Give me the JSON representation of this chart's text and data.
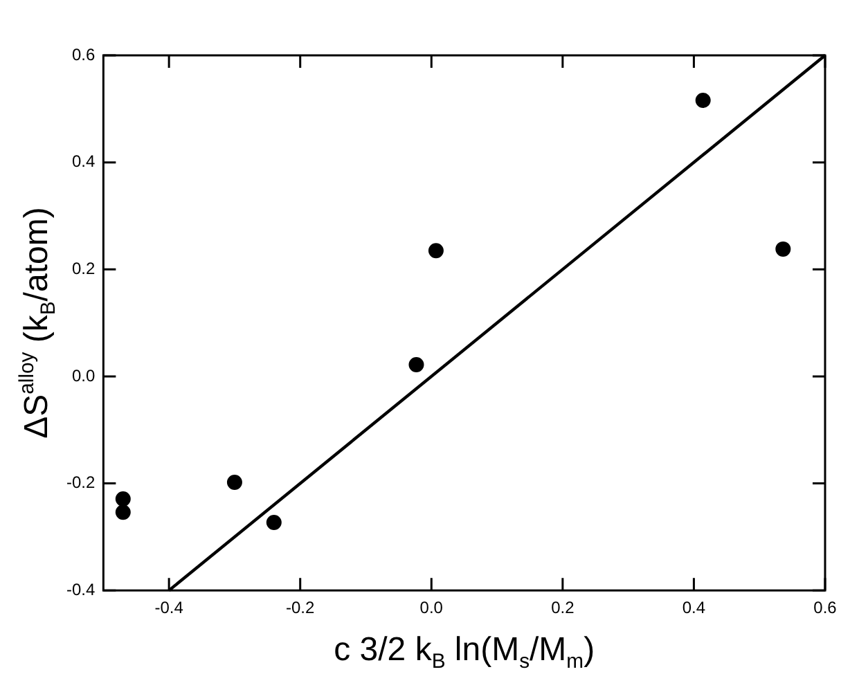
{
  "chart_data": {
    "type": "scatter",
    "xlabel": "c 3/2 k$_{B}$ ln(M$_{s}$/M$_{m}$)",
    "ylabel": "ΔS$^{alloy}$ (k$_{B}$/atom)",
    "xlim": [
      -0.5,
      0.6
    ],
    "ylim": [
      -0.4,
      0.6
    ],
    "xticks": [
      {
        "value": -0.4,
        "label": "-0.4"
      },
      {
        "value": -0.2,
        "label": "-0.2"
      },
      {
        "value": 0,
        "label": "0.0"
      },
      {
        "value": 0.2,
        "label": "0.2"
      },
      {
        "value": 0.4,
        "label": "0.4"
      },
      {
        "value": 0.6,
        "label": "0.6"
      }
    ],
    "yticks": [
      {
        "value": -0.4,
        "label": "-0.4"
      },
      {
        "value": -0.2,
        "label": "-0.2"
      },
      {
        "value": 0,
        "label": "0.0"
      },
      {
        "value": 0.2,
        "label": "0.2"
      },
      {
        "value": 0.4,
        "label": "0.4"
      },
      {
        "value": 0.6,
        "label": "0.6"
      }
    ],
    "grid": false,
    "legend": false,
    "series": [
      {
        "marker": "circle",
        "color": "#000000",
        "x": [
          -0.47,
          -0.47,
          -0.3,
          -0.24,
          -0.023,
          0.007,
          0.414,
          0.536
        ],
        "values": [
          -0.229,
          -0.254,
          -0.198,
          -0.273,
          0.022,
          0.235,
          0.516,
          0.238
        ]
      },
      {
        "type": "line",
        "marker": "none",
        "line_style": "solid",
        "color": "#000000",
        "x": [
          -0.4,
          0.6
        ],
        "values": [
          -0.4,
          0.6
        ]
      }
    ]
  }
}
